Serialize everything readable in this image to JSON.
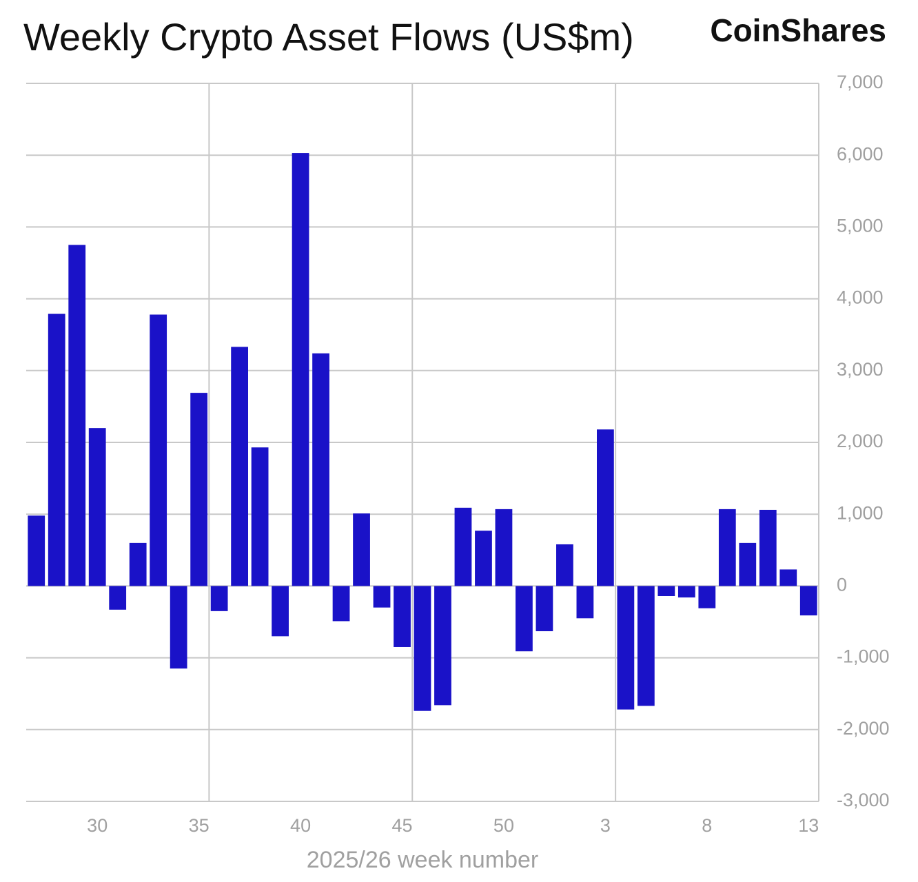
{
  "chart_data": {
    "type": "bar",
    "title": "Weekly Crypto Asset Flows (US$m)",
    "brand": "CoinShares",
    "x_label": "2025/26 week number",
    "categories": [
      null,
      null,
      null,
      "30",
      null,
      null,
      null,
      null,
      "35",
      null,
      null,
      null,
      null,
      "40",
      null,
      null,
      null,
      null,
      "45",
      null,
      null,
      null,
      null,
      "50",
      null,
      null,
      null,
      null,
      "3",
      null,
      null,
      null,
      null,
      "8",
      null,
      null,
      null,
      null,
      "13"
    ],
    "values": [
      980,
      3790,
      4750,
      2200,
      -330,
      600,
      3780,
      -1150,
      2690,
      -350,
      3330,
      1930,
      -700,
      6030,
      3240,
      -490,
      1010,
      -300,
      -850,
      -1740,
      -1660,
      1090,
      770,
      1070,
      -910,
      -630,
      580,
      -450,
      2180,
      -1720,
      -1670,
      -140,
      -160,
      -310,
      1070,
      600,
      1060,
      230,
      -410
    ],
    "color": "#1a12c8",
    "ylim": [
      -3000,
      7000
    ],
    "yticks": [
      {
        "value": 7000,
        "label": "7,000"
      },
      {
        "value": 6000,
        "label": "6,000"
      },
      {
        "value": 5000,
        "label": "5,000"
      },
      {
        "value": 4000,
        "label": "4,000"
      },
      {
        "value": 3000,
        "label": "3,000"
      },
      {
        "value": 2000,
        "label": "2,000"
      },
      {
        "value": 1000,
        "label": "1,000"
      },
      0,
      {
        "value": -1000,
        "label": "-1,000"
      },
      {
        "value": -2000,
        "label": "-2,000"
      },
      {
        "value": -3000,
        "label": "-3,000"
      }
    ],
    "grid": true,
    "y_axis_side": "right"
  }
}
